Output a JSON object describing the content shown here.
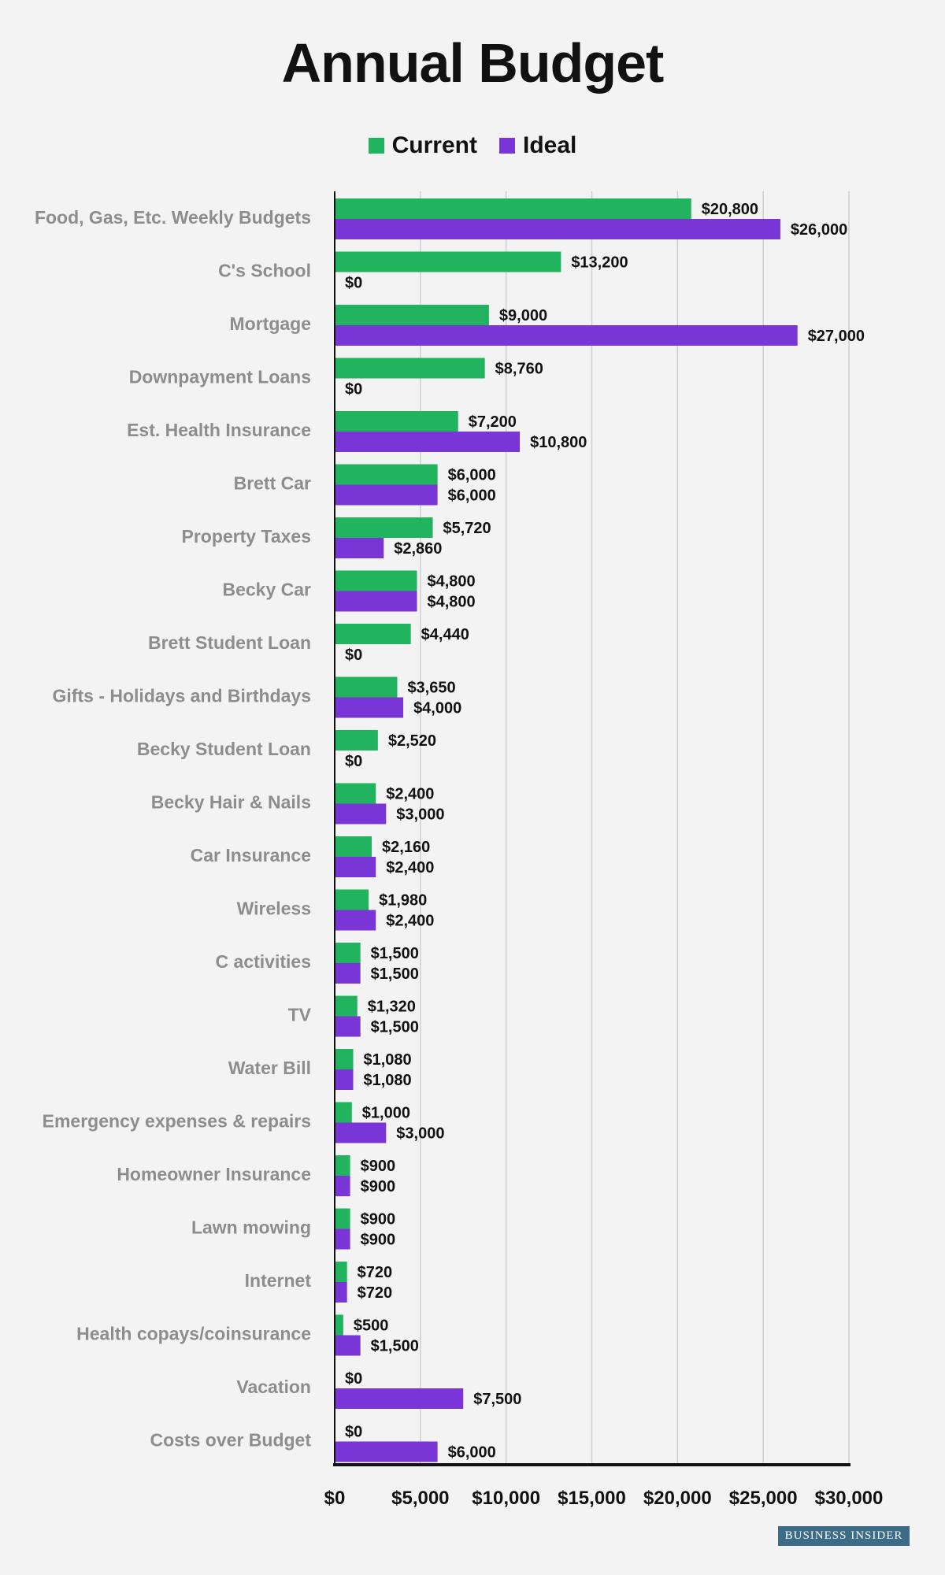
{
  "chart_data": {
    "type": "bar",
    "orientation": "horizontal",
    "title": "Annual Budget",
    "xlabel": "",
    "ylabel": "",
    "xlim": [
      0,
      30000
    ],
    "x_ticks": [
      "$0",
      "$5,000",
      "$10,000",
      "$15,000",
      "$20,000",
      "$25,000",
      "$30,000"
    ],
    "x_tick_values": [
      0,
      5000,
      10000,
      15000,
      20000,
      25000,
      30000
    ],
    "grid": "vertical",
    "legend_position": "top",
    "categories": [
      "Food, Gas, Etc. Weekly Budgets",
      "C's School",
      "Mortgage",
      "Downpayment Loans",
      "Est. Health Insurance",
      "Brett Car",
      "Property Taxes",
      "Becky Car",
      "Brett Student Loan",
      "Gifts - Holidays and Birthdays",
      "Becky Student Loan",
      "Becky Hair & Nails",
      "Car Insurance",
      "Wireless",
      "C activities",
      "TV",
      "Water Bill",
      "Emergency expenses & repairs",
      "Homeowner Insurance",
      "Lawn mowing",
      "Internet",
      "Health copays/coinsurance",
      "Vacation",
      "Costs over Budget"
    ],
    "series": [
      {
        "name": "Current",
        "color": "#22b35f",
        "values": [
          20800,
          13200,
          9000,
          8760,
          7200,
          6000,
          5720,
          4800,
          4440,
          3650,
          2520,
          2400,
          2160,
          1980,
          1500,
          1320,
          1080,
          1000,
          900,
          900,
          720,
          500,
          0,
          0
        ],
        "labels": [
          "$20,800",
          "$13,200",
          "$9,000",
          "$8,760",
          "$7,200",
          "$6,000",
          "$5,720",
          "$4,800",
          "$4,440",
          "$3,650",
          "$2,520",
          "$2,400",
          "$2,160",
          "$1,980",
          "$1,500",
          "$1,320",
          "$1,080",
          "$1,000",
          "$900",
          "$900",
          "$720",
          "$500",
          "$0",
          "$0"
        ]
      },
      {
        "name": "Ideal",
        "color": "#7a35d6",
        "values": [
          26000,
          0,
          27000,
          0,
          10800,
          6000,
          2860,
          4800,
          0,
          4000,
          0,
          3000,
          2400,
          2400,
          1500,
          1500,
          1080,
          3000,
          900,
          900,
          720,
          1500,
          7500,
          6000
        ],
        "labels": [
          "$26,000",
          "$0",
          "$27,000",
          "$0",
          "$10,800",
          "$6,000",
          "$2,860",
          "$4,800",
          "$0",
          "$4,000",
          "$0",
          "$3,000",
          "$2,400",
          "$2,400",
          "$1,500",
          "$1,500",
          "$1,080",
          "$3,000",
          "$900",
          "$900",
          "$720",
          "$1,500",
          "$7,500",
          "$6,000"
        ]
      }
    ]
  },
  "source": "BUSINESS INSIDER"
}
